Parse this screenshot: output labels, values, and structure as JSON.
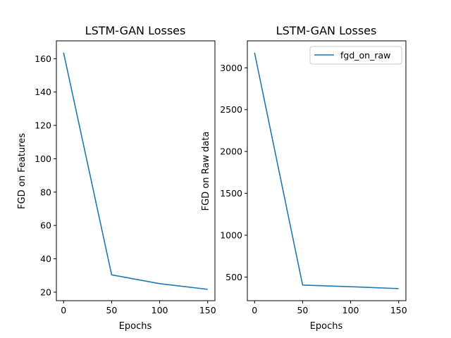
{
  "chart_data": [
    {
      "type": "line",
      "title": "LSTM-GAN Losses",
      "xlabel": "Epochs",
      "ylabel": "FGD on Features",
      "xlim": [
        -7.5,
        157.5
      ],
      "ylim": [
        14.9,
        170.7
      ],
      "xticks": [
        0,
        50,
        100,
        150
      ],
      "yticks": [
        20,
        40,
        60,
        80,
        100,
        120,
        140,
        160
      ],
      "grid": false,
      "legend": null,
      "series": [
        {
          "name": "",
          "color": "#1f77b4",
          "x": [
            0,
            50,
            100,
            150
          ],
          "y": [
            163.6,
            30.4,
            25.1,
            21.7
          ]
        }
      ]
    },
    {
      "type": "line",
      "title": "LSTM-GAN Losses",
      "xlabel": "Epochs",
      "ylabel": "FGD on Raw data",
      "xlim": [
        -7.5,
        157.5
      ],
      "ylim": [
        218,
        3322
      ],
      "xticks": [
        0,
        50,
        100,
        150
      ],
      "yticks": [
        500,
        1000,
        1500,
        2000,
        2500,
        3000
      ],
      "grid": false,
      "legend": "upper right",
      "series": [
        {
          "name": "fgd_on_raw",
          "color": "#1f77b4",
          "x": [
            0,
            50,
            100,
            150
          ],
          "y": [
            3180,
            405,
            385,
            362
          ]
        }
      ]
    }
  ]
}
